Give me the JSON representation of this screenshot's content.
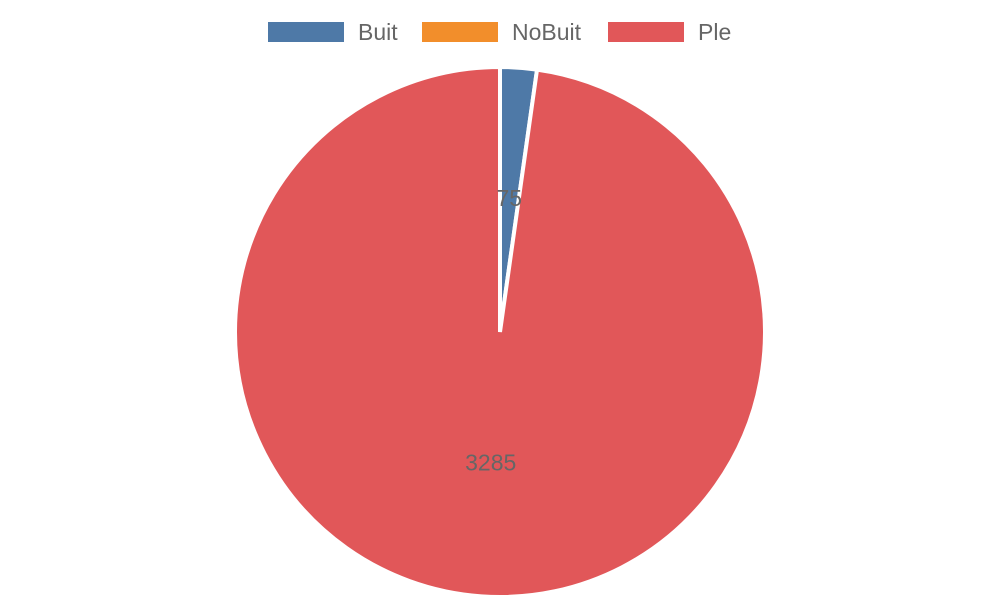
{
  "chart_data": {
    "type": "pie",
    "categories": [
      "Buit",
      "NoBuit",
      "Ple"
    ],
    "values": [
      75,
      0,
      3285
    ],
    "colors": [
      "#4e79a7",
      "#f28e2b",
      "#e15759"
    ],
    "data_labels": [
      "75",
      "",
      "3285"
    ],
    "legend_position": "top",
    "start_angle": "top, clockwise"
  },
  "legend": {
    "items": [
      {
        "label": "Buit",
        "color": "#4e79a7"
      },
      {
        "label": "NoBuit",
        "color": "#f28e2b"
      },
      {
        "label": "Ple",
        "color": "#e15759"
      }
    ]
  }
}
